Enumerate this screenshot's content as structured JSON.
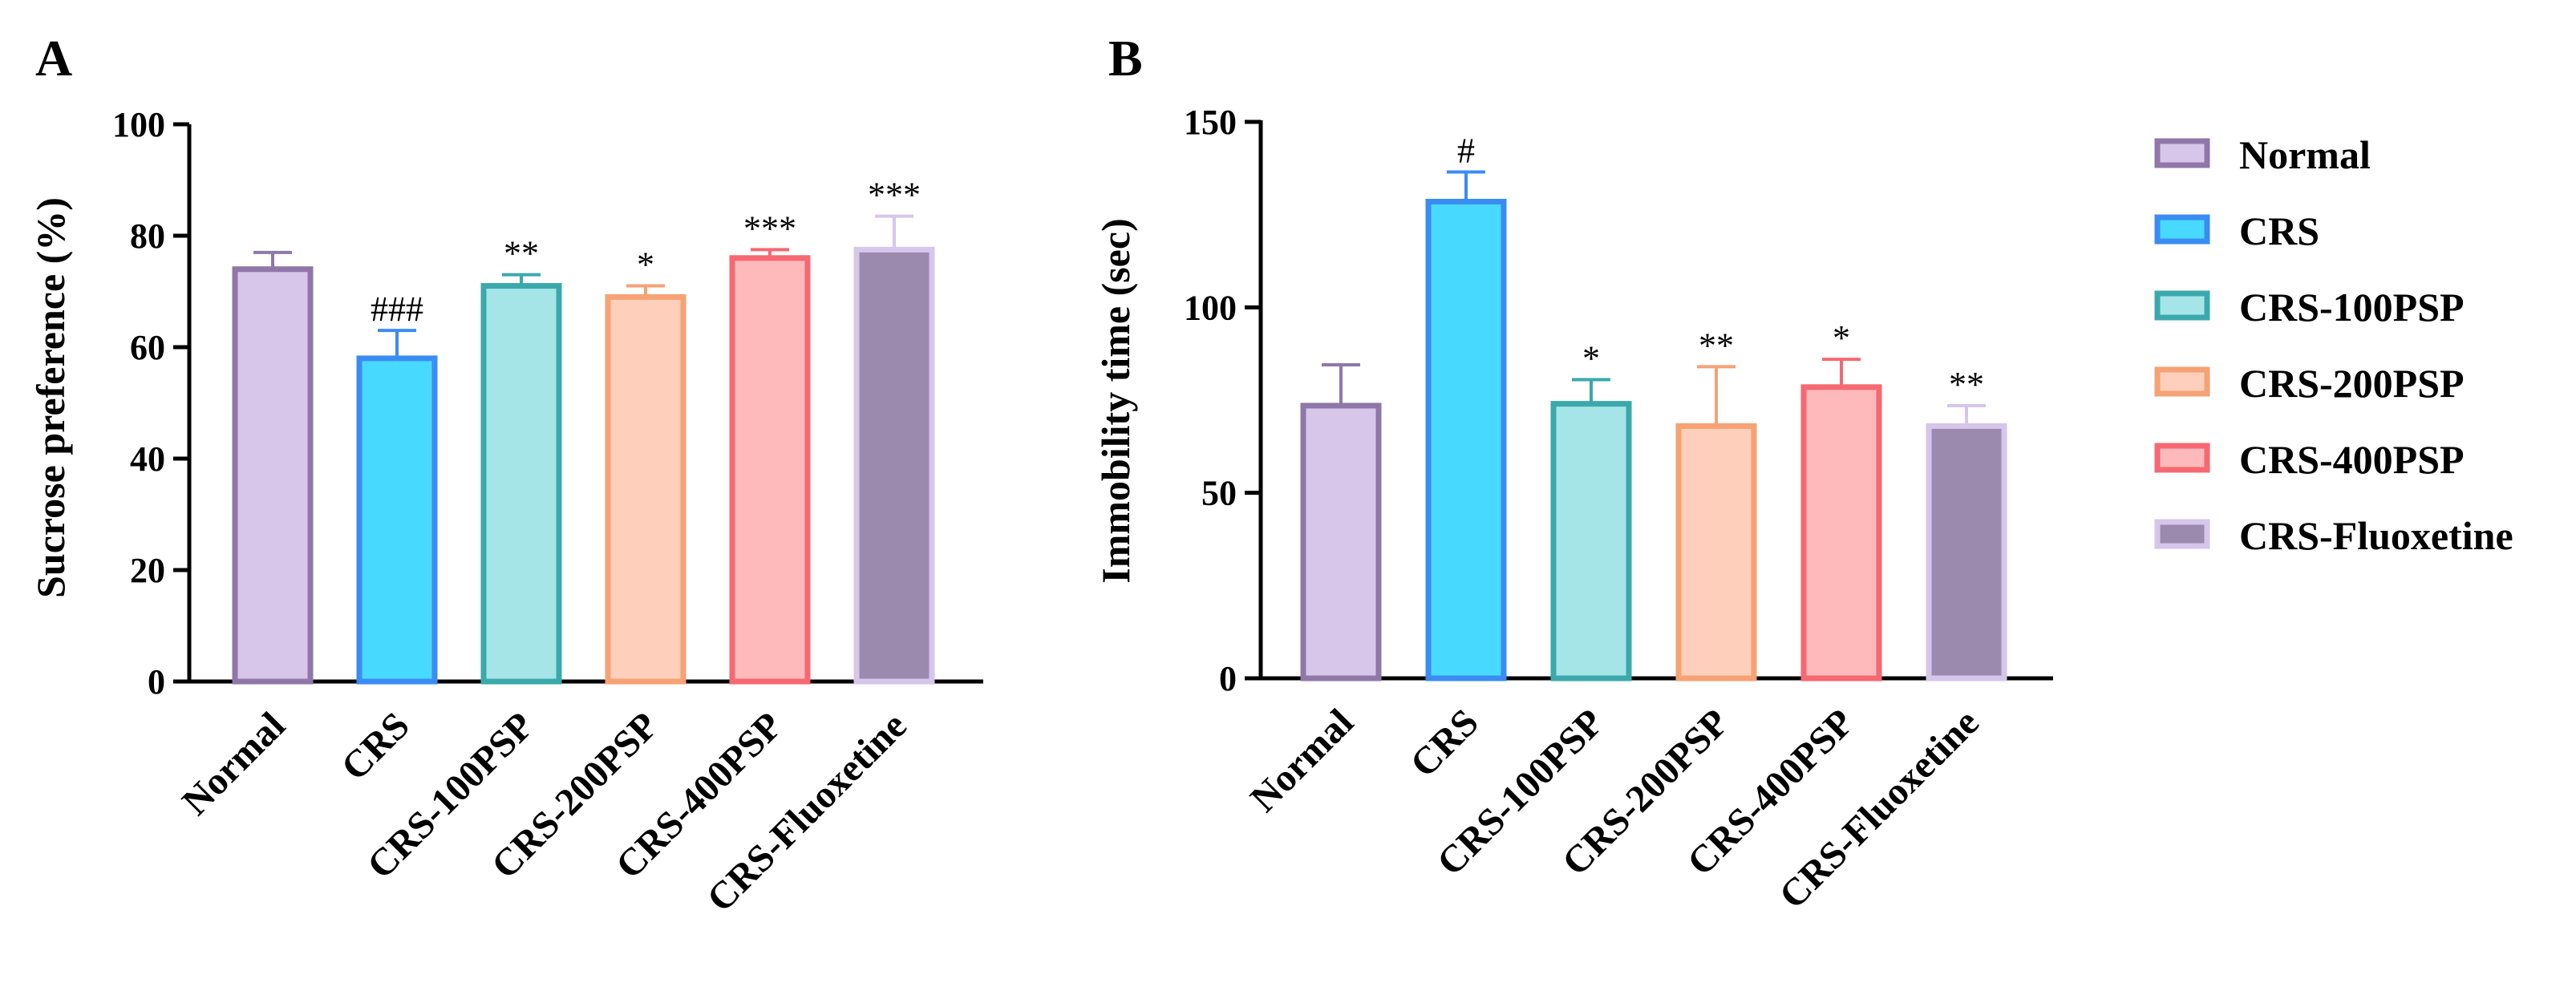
{
  "chart_data": [
    {
      "panel": "A",
      "type": "bar",
      "title": "",
      "xlabel": "",
      "ylabel": "Sucrose preference (%)",
      "ylim": [
        0,
        100
      ],
      "yticks": [
        0,
        20,
        40,
        60,
        80,
        100
      ],
      "categories": [
        "Normal",
        "CRS",
        "CRS-100PSP",
        "CRS-200PSP",
        "CRS-400PSP",
        "CRS-Fluoxetine"
      ],
      "values": [
        74,
        58,
        71,
        69,
        76,
        77.5
      ],
      "errors": [
        3,
        5,
        2,
        2,
        1.5,
        6
      ],
      "significance": [
        "",
        "###",
        "**",
        "*",
        "***",
        "***"
      ]
    },
    {
      "panel": "B",
      "type": "bar",
      "title": "",
      "xlabel": "",
      "ylabel": "Immobility time (sec)",
      "ylim": [
        0,
        150
      ],
      "yticks": [
        0,
        50,
        100,
        150
      ],
      "categories": [
        "Normal",
        "CRS",
        "CRS-100PSP",
        "CRS-200PSP",
        "CRS-400PSP",
        "CRS-Fluoxetine"
      ],
      "values": [
        73.5,
        128.5,
        74,
        68,
        78.5,
        68
      ],
      "errors": [
        11,
        8,
        6.5,
        16,
        7.5,
        5.5
      ],
      "significance": [
        "",
        "#",
        "*",
        "**",
        "*",
        "**"
      ]
    }
  ],
  "legend": {
    "position": "right",
    "entries": [
      "Normal",
      "CRS",
      "CRS-100PSP",
      "CRS-200PSP",
      "CRS-400PSP",
      "CRS-Fluoxetine"
    ]
  },
  "series_colors": [
    {
      "fill": "#d8c6ea",
      "stroke": "#8f78a8"
    },
    {
      "fill": "#48d9ff",
      "stroke": "#3b8cf2"
    },
    {
      "fill": "#a5e5e8",
      "stroke": "#3ba9ac"
    },
    {
      "fill": "#fecfba",
      "stroke": "#f6a274"
    },
    {
      "fill": "#feb9ba",
      "stroke": "#f66872"
    },
    {
      "fill": "#9b8aad",
      "stroke": "#d6c6eb"
    }
  ]
}
